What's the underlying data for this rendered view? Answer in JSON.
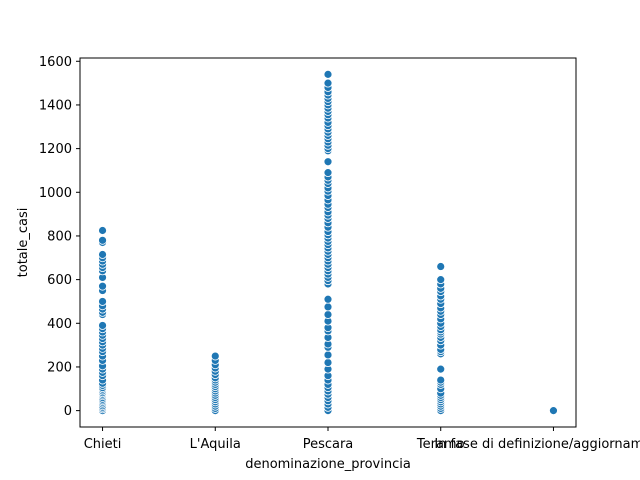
{
  "chart_data": {
    "type": "scatter",
    "xlabel": "denominazione_provincia",
    "ylabel": "totale_casi",
    "categories": [
      "Chieti",
      "L'Aquila",
      "Pescara",
      "Teramo",
      "In fase di definizione/aggiornamento"
    ],
    "ylim": [
      -75,
      1615
    ],
    "yticks": [
      0,
      200,
      400,
      600,
      800,
      1000,
      1200,
      1400,
      1600
    ],
    "grid": false,
    "marker_color": "#1f77b4",
    "marker_edge_color": "#ffffff",
    "series": [
      {
        "category": "Chieti",
        "values": [
          0,
          8,
          15,
          22,
          30,
          38,
          45,
          52,
          60,
          68,
          75,
          82,
          90,
          98,
          105,
          115,
          125,
          140,
          160,
          175,
          190,
          205,
          230,
          250,
          270,
          285,
          300,
          315,
          330,
          345,
          360,
          375,
          390,
          440,
          450,
          465,
          480,
          500,
          550,
          570,
          610,
          640,
          655,
          670,
          685,
          700,
          715,
          770,
          780,
          825
        ]
      },
      {
        "category": "L'Aquila",
        "values": [
          0,
          10,
          20,
          30,
          40,
          50,
          60,
          70,
          80,
          90,
          100,
          110,
          120,
          130,
          140,
          150,
          165,
          180,
          195,
          210,
          230,
          250
        ]
      },
      {
        "category": "Pescara",
        "values": [
          0,
          15,
          30,
          45,
          60,
          75,
          90,
          105,
          120,
          140,
          160,
          190,
          220,
          255,
          290,
          305,
          335,
          365,
          380,
          410,
          440,
          475,
          510,
          580,
          595,
          610,
          625,
          640,
          655,
          670,
          685,
          700,
          715,
          730,
          745,
          760,
          775,
          790,
          805,
          820,
          840,
          860,
          880,
          895,
          910,
          930,
          945,
          965,
          985,
          1005,
          1020,
          1040,
          1055,
          1070,
          1090,
          1140,
          1190,
          1200,
          1215,
          1230,
          1245,
          1260,
          1275,
          1290,
          1305,
          1320,
          1340,
          1355,
          1370,
          1385,
          1400,
          1415,
          1430,
          1445,
          1460,
          1480,
          1500,
          1540
        ]
      },
      {
        "category": "Teramo",
        "values": [
          0,
          10,
          20,
          30,
          40,
          50,
          60,
          70,
          80,
          100,
          120,
          130,
          140,
          190,
          260,
          270,
          280,
          300,
          320,
          335,
          350,
          360,
          370,
          385,
          400,
          420,
          440,
          455,
          470,
          490,
          510,
          525,
          545,
          560,
          580,
          600,
          660
        ]
      },
      {
        "category": "In fase di definizione/aggiornamento",
        "values": [
          0
        ]
      }
    ]
  }
}
